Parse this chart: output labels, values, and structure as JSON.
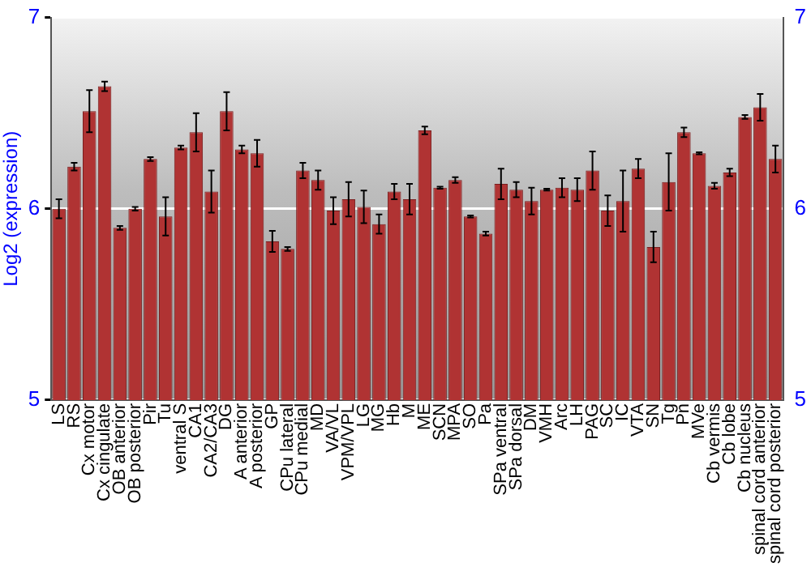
{
  "chart_data": {
    "type": "bar",
    "ylabel": "Log2 (expression)",
    "categories": [
      "LS",
      "RS",
      "Cx motor",
      "Cx cingulate",
      "OB anterior",
      "OB posterior",
      "Pir",
      "Tu",
      "ventral S",
      "CA1",
      "CA2/CA3",
      "DG",
      "A anterior",
      "A posterior",
      "GP",
      "CPu lateral",
      "CPu medial",
      "MD",
      "VA/VL",
      "VPM/VPL",
      "LG",
      "MG",
      "Hb",
      "M",
      "ME",
      "SCN",
      "MPA",
      "SO",
      "Pa",
      "SPa ventral",
      "SPa dorsal",
      "DM",
      "VMH",
      "Arc",
      "LH",
      "PAG",
      "SC",
      "IC",
      "VTA",
      "SN",
      "Tg",
      "Pn",
      "MVe",
      "Cb vermis",
      "Cb lobe",
      "Cb nucleus",
      "spinal cord anterior",
      "spinal cord posterior"
    ],
    "series": [
      {
        "color": "#b03333",
        "values": [
          6.0,
          6.22,
          6.51,
          6.64,
          5.9,
          6.0,
          6.26,
          5.96,
          6.32,
          6.4,
          6.09,
          6.51,
          6.31,
          6.29,
          5.83,
          5.79,
          6.2,
          6.15,
          5.99,
          6.05,
          6.01,
          5.92,
          6.09,
          6.05,
          6.41,
          6.11,
          6.15,
          5.96,
          5.87,
          6.13,
          6.1,
          6.04,
          6.1,
          6.11,
          6.1,
          6.2,
          5.99,
          6.04,
          6.21,
          5.8,
          6.14,
          6.4,
          6.29,
          6.12,
          6.19,
          6.48,
          6.53,
          6.26
        ],
        "errors": [
          0.05,
          0.02,
          0.11,
          0.025,
          0.01,
          0.01,
          0.01,
          0.1,
          0.01,
          0.1,
          0.11,
          0.1,
          0.02,
          0.07,
          0.055,
          0.01,
          0.04,
          0.05,
          0.07,
          0.09,
          0.085,
          0.05,
          0.04,
          0.08,
          0.02,
          0.005,
          0.015,
          0.005,
          0.01,
          0.08,
          0.04,
          0.07,
          0.005,
          0.05,
          0.06,
          0.1,
          0.08,
          0.16,
          0.05,
          0.08,
          0.15,
          0.025,
          0.005,
          0.015,
          0.02,
          0.01,
          0.07,
          0.07
        ]
      }
    ],
    "ylim": [
      5,
      7
    ],
    "yticks": [
      5,
      6,
      7
    ],
    "y2lim": [
      5,
      7
    ],
    "y2ticks": [
      5,
      6,
      7
    ],
    "grid": "y",
    "legend": false
  }
}
